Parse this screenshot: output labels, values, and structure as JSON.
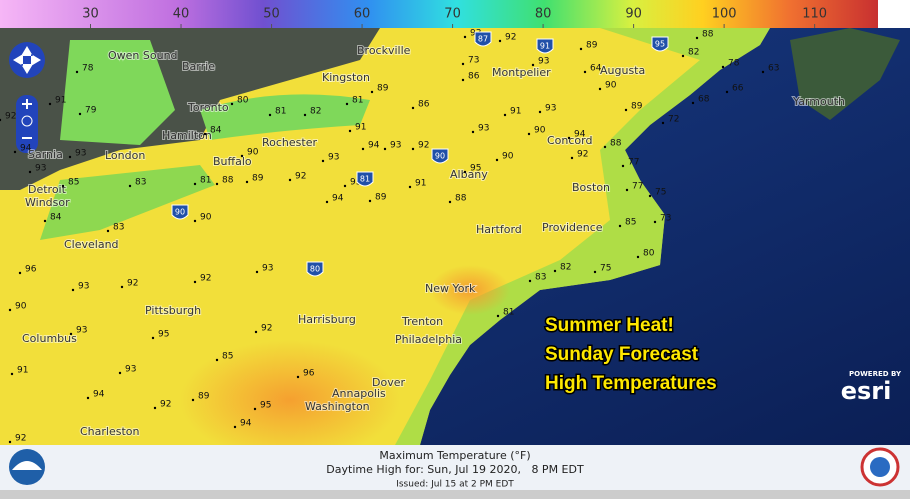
{
  "legend": {
    "range": [
      20,
      117
    ],
    "ticks": [
      30,
      40,
      50,
      60,
      70,
      80,
      90,
      100,
      110
    ]
  },
  "cities": [
    "Owen Sound",
    "Barrie",
    "Brockville",
    "Kingston",
    "Montpelier",
    "Augusta",
    "Yarmouth",
    "Toronto",
    "Hamilton",
    "Rochester",
    "Buffalo",
    "Sarnia",
    "London",
    "Detroit",
    "Windsor",
    "Albany",
    "Concord",
    "Boston",
    "Hartford",
    "Providence",
    "Cleveland",
    "Pittsburgh",
    "New York",
    "Harrisburg",
    "Trenton",
    "Philadelphia",
    "Columbus",
    "Dover",
    "Annapolis",
    "Washington",
    "Charleston"
  ],
  "temps": [
    78,
    91,
    79,
    92,
    94,
    93,
    93,
    85,
    83,
    81,
    88,
    89,
    92,
    94,
    93,
    89,
    91,
    88,
    95,
    80,
    81,
    82,
    81,
    89,
    86,
    84,
    90,
    93,
    91,
    94,
    93,
    92,
    93,
    90,
    91,
    93,
    90,
    94,
    92,
    88,
    77,
    77,
    75,
    73,
    85,
    80,
    75,
    82,
    83,
    81,
    72,
    68,
    66,
    63,
    78,
    82,
    88,
    90,
    89,
    86,
    73,
    93,
    92,
    93,
    64,
    89,
    90,
    83,
    84,
    96,
    93,
    92,
    92,
    93,
    93,
    95,
    92,
    85,
    93,
    94,
    92,
    89,
    94,
    95,
    96,
    92,
    90,
    91
  ],
  "interstates": [
    87,
    91,
    90,
    81,
    90,
    80,
    95
  ],
  "overlay": [
    "Summer Heat!",
    "Sunday Forecast",
    "High Temperatures"
  ],
  "esri": {
    "powered": "POWERED BY",
    "brand": "esri"
  },
  "footer": {
    "title": "Maximum Temperature (°F)",
    "valid": "Daytime High for: Sun, Jul 19 2020,   8 PM EDT",
    "issued": "Issued: Jul 15 at 2 PM EDT"
  }
}
